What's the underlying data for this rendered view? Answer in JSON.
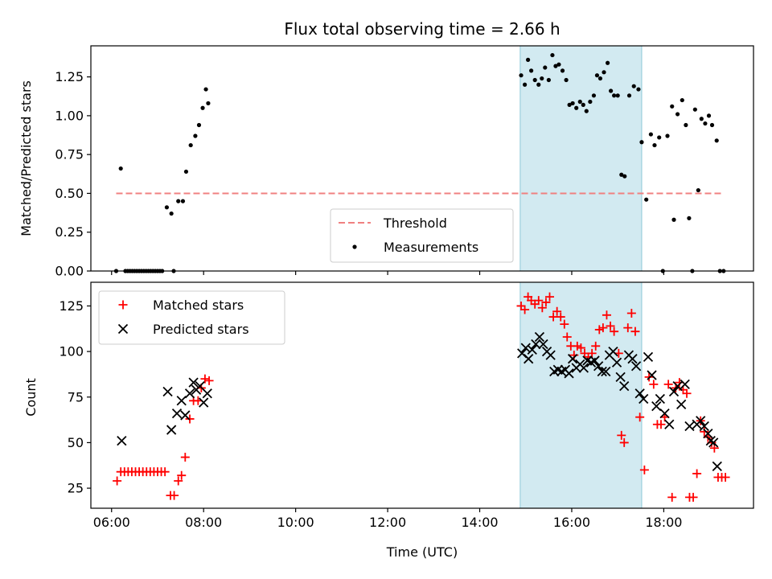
{
  "title": "Flux total observing time = 2.66 h",
  "xlabel": "Time (UTC)",
  "chart_data": [
    {
      "type": "scatter",
      "panel": "top",
      "ylabel": "Matched/Predicted stars",
      "xlim": [
        5.55,
        19.95
      ],
      "ylim": [
        0,
        1.45
      ],
      "xticks": [
        "06:00",
        "08:00",
        "10:00",
        "12:00",
        "14:00",
        "16:00",
        "18:00"
      ],
      "xtick_values": [
        6,
        8,
        10,
        12,
        14,
        16,
        18
      ],
      "yticks": [
        "0.00",
        "0.25",
        "0.50",
        "0.75",
        "1.00",
        "1.25"
      ],
      "ytick_values": [
        0,
        0.25,
        0.5,
        0.75,
        1.0,
        1.25
      ],
      "highlight": {
        "x_start": 14.88,
        "x_end": 17.52,
        "color": "#add8e6"
      },
      "threshold": {
        "name": "Threshold",
        "y": 0.5,
        "x_range": [
          6.1,
          19.3
        ],
        "color": "#f08080"
      },
      "legend": {
        "position": "bottom-center",
        "entries": [
          "Threshold",
          "Measurements"
        ]
      },
      "series": [
        {
          "name": "Measurements",
          "color": "#000000",
          "points": [
            [
              6.1,
              0
            ],
            [
              6.2,
              0.66
            ],
            [
              6.3,
              0
            ],
            [
              6.35,
              0
            ],
            [
              6.4,
              0
            ],
            [
              6.45,
              0
            ],
            [
              6.5,
              0
            ],
            [
              6.55,
              0
            ],
            [
              6.6,
              0
            ],
            [
              6.65,
              0
            ],
            [
              6.7,
              0
            ],
            [
              6.75,
              0
            ],
            [
              6.8,
              0
            ],
            [
              6.85,
              0
            ],
            [
              6.9,
              0
            ],
            [
              6.95,
              0
            ],
            [
              7.0,
              0
            ],
            [
              7.05,
              0
            ],
            [
              7.1,
              0
            ],
            [
              7.2,
              0.41
            ],
            [
              7.3,
              0.37
            ],
            [
              7.35,
              0
            ],
            [
              7.45,
              0.45
            ],
            [
              7.55,
              0.45
            ],
            [
              7.62,
              0.64
            ],
            [
              7.72,
              0.81
            ],
            [
              7.82,
              0.87
            ],
            [
              7.9,
              0.94
            ],
            [
              7.98,
              1.05
            ],
            [
              8.05,
              1.17
            ],
            [
              8.1,
              1.08
            ],
            [
              14.9,
              1.26
            ],
            [
              14.98,
              1.2
            ],
            [
              15.05,
              1.36
            ],
            [
              15.12,
              1.29
            ],
            [
              15.2,
              1.23
            ],
            [
              15.28,
              1.2
            ],
            [
              15.35,
              1.24
            ],
            [
              15.42,
              1.31
            ],
            [
              15.5,
              1.23
            ],
            [
              15.58,
              1.39
            ],
            [
              15.65,
              1.32
            ],
            [
              15.72,
              1.33
            ],
            [
              15.8,
              1.29
            ],
            [
              15.88,
              1.23
            ],
            [
              15.95,
              1.07
            ],
            [
              16.02,
              1.08
            ],
            [
              16.1,
              1.05
            ],
            [
              16.18,
              1.09
            ],
            [
              16.25,
              1.07
            ],
            [
              16.32,
              1.03
            ],
            [
              16.4,
              1.09
            ],
            [
              16.48,
              1.13
            ],
            [
              16.55,
              1.26
            ],
            [
              16.62,
              1.24
            ],
            [
              16.7,
              1.28
            ],
            [
              16.78,
              1.34
            ],
            [
              16.85,
              1.16
            ],
            [
              16.92,
              1.13
            ],
            [
              17.0,
              1.13
            ],
            [
              17.08,
              0.62
            ],
            [
              17.15,
              0.61
            ],
            [
              17.25,
              1.13
            ],
            [
              17.35,
              1.19
            ],
            [
              17.45,
              1.17
            ],
            [
              17.52,
              0.83
            ],
            [
              17.62,
              0.46
            ],
            [
              17.72,
              0.88
            ],
            [
              17.8,
              0.81
            ],
            [
              17.9,
              0.86
            ],
            [
              17.98,
              0
            ],
            [
              18.08,
              0.87
            ],
            [
              18.18,
              1.06
            ],
            [
              18.22,
              0.33
            ],
            [
              18.3,
              1.01
            ],
            [
              18.4,
              1.1
            ],
            [
              18.48,
              0.94
            ],
            [
              18.55,
              0.34
            ],
            [
              18.62,
              0
            ],
            [
              18.68,
              1.04
            ],
            [
              18.75,
              0.52
            ],
            [
              18.82,
              0.98
            ],
            [
              18.9,
              0.95
            ],
            [
              18.98,
              1.0
            ],
            [
              19.05,
              0.94
            ],
            [
              19.15,
              0.84
            ],
            [
              19.22,
              0
            ],
            [
              19.3,
              0
            ]
          ]
        }
      ]
    },
    {
      "type": "scatter",
      "panel": "bottom",
      "ylabel": "Count",
      "xlim": [
        5.55,
        19.95
      ],
      "ylim": [
        14,
        138
      ],
      "xticks": [
        "06:00",
        "08:00",
        "10:00",
        "12:00",
        "14:00",
        "16:00",
        "18:00"
      ],
      "xtick_values": [
        6,
        8,
        10,
        12,
        14,
        16,
        18
      ],
      "yticks": [
        "25",
        "50",
        "75",
        "100",
        "125"
      ],
      "ytick_values": [
        25,
        50,
        75,
        100,
        125
      ],
      "highlight": {
        "x_start": 14.88,
        "x_end": 17.52,
        "color": "#add8e6"
      },
      "legend": {
        "position": "top-left",
        "entries": [
          "Matched stars",
          "Predicted stars"
        ]
      },
      "series": [
        {
          "name": "Matched stars",
          "marker": "+",
          "color": "#ff0000",
          "points": [
            [
              6.12,
              29
            ],
            [
              6.2,
              34
            ],
            [
              6.28,
              34
            ],
            [
              6.36,
              34
            ],
            [
              6.44,
              34
            ],
            [
              6.52,
              34
            ],
            [
              6.6,
              34
            ],
            [
              6.68,
              34
            ],
            [
              6.76,
              34
            ],
            [
              6.84,
              34
            ],
            [
              6.92,
              34
            ],
            [
              7.0,
              34
            ],
            [
              7.08,
              34
            ],
            [
              7.16,
              34
            ],
            [
              7.28,
              21
            ],
            [
              7.36,
              21
            ],
            [
              7.45,
              29
            ],
            [
              7.52,
              32
            ],
            [
              7.6,
              42
            ],
            [
              7.7,
              63
            ],
            [
              7.78,
              73
            ],
            [
              7.88,
              73
            ],
            [
              7.95,
              80
            ],
            [
              8.03,
              85
            ],
            [
              8.12,
              84
            ],
            [
              14.9,
              125
            ],
            [
              14.98,
              123
            ],
            [
              15.05,
              130
            ],
            [
              15.12,
              128
            ],
            [
              15.2,
              126
            ],
            [
              15.28,
              128
            ],
            [
              15.36,
              124
            ],
            [
              15.44,
              127
            ],
            [
              15.52,
              130
            ],
            [
              15.6,
              119
            ],
            [
              15.68,
              122
            ],
            [
              15.76,
              119
            ],
            [
              15.84,
              115
            ],
            [
              15.9,
              108
            ],
            [
              15.98,
              103
            ],
            [
              16.05,
              98
            ],
            [
              16.12,
              103
            ],
            [
              16.2,
              102
            ],
            [
              16.28,
              99
            ],
            [
              16.36,
              97
            ],
            [
              16.44,
              99
            ],
            [
              16.52,
              103
            ],
            [
              16.6,
              112
            ],
            [
              16.68,
              113
            ],
            [
              16.76,
              120
            ],
            [
              16.84,
              114
            ],
            [
              16.92,
              111
            ],
            [
              17.02,
              99
            ],
            [
              17.08,
              54
            ],
            [
              17.14,
              50
            ],
            [
              17.22,
              113
            ],
            [
              17.3,
              121
            ],
            [
              17.38,
              111
            ],
            [
              17.48,
              64
            ],
            [
              17.58,
              35
            ],
            [
              17.68,
              86
            ],
            [
              17.78,
              82
            ],
            [
              17.86,
              60
            ],
            [
              17.94,
              60
            ],
            [
              18.02,
              64
            ],
            [
              18.1,
              82
            ],
            [
              18.18,
              20
            ],
            [
              18.26,
              80
            ],
            [
              18.34,
              83
            ],
            [
              18.42,
              79
            ],
            [
              18.5,
              77
            ],
            [
              18.56,
              20
            ],
            [
              18.64,
              20
            ],
            [
              18.72,
              33
            ],
            [
              18.8,
              62
            ],
            [
              18.88,
              56
            ],
            [
              18.96,
              53
            ],
            [
              19.04,
              50
            ],
            [
              19.1,
              47
            ],
            [
              19.18,
              31
            ],
            [
              19.26,
              31
            ],
            [
              19.34,
              31
            ]
          ]
        },
        {
          "name": "Predicted stars",
          "marker": "x",
          "color": "#000000",
          "points": [
            [
              6.22,
              51
            ],
            [
              7.22,
              78
            ],
            [
              7.3,
              57
            ],
            [
              7.42,
              66
            ],
            [
              7.52,
              73
            ],
            [
              7.6,
              65
            ],
            [
              7.7,
              77
            ],
            [
              7.78,
              83
            ],
            [
              7.84,
              79
            ],
            [
              7.92,
              81
            ],
            [
              8.0,
              72
            ],
            [
              8.08,
              77
            ],
            [
              14.92,
              99
            ],
            [
              15.0,
              102
            ],
            [
              15.06,
              96
            ],
            [
              15.14,
              101
            ],
            [
              15.22,
              104
            ],
            [
              15.3,
              108
            ],
            [
              15.38,
              104
            ],
            [
              15.46,
              100
            ],
            [
              15.54,
              98
            ],
            [
              15.62,
              89
            ],
            [
              15.7,
              90
            ],
            [
              15.78,
              89
            ],
            [
              15.86,
              90
            ],
            [
              15.94,
              88
            ],
            [
              16.02,
              96
            ],
            [
              16.1,
              91
            ],
            [
              16.18,
              93
            ],
            [
              16.26,
              91
            ],
            [
              16.34,
              95
            ],
            [
              16.42,
              94
            ],
            [
              16.5,
              95
            ],
            [
              16.58,
              92
            ],
            [
              16.66,
              89
            ],
            [
              16.74,
              89
            ],
            [
              16.82,
              98
            ],
            [
              16.9,
              100
            ],
            [
              16.98,
              94
            ],
            [
              17.06,
              86
            ],
            [
              17.14,
              81
            ],
            [
              17.24,
              98
            ],
            [
              17.32,
              96
            ],
            [
              17.4,
              92
            ],
            [
              17.48,
              77
            ],
            [
              17.56,
              74
            ],
            [
              17.66,
              97
            ],
            [
              17.74,
              87
            ],
            [
              17.84,
              70
            ],
            [
              17.92,
              74
            ],
            [
              18.02,
              66
            ],
            [
              18.12,
              60
            ],
            [
              18.22,
              78
            ],
            [
              18.3,
              81
            ],
            [
              18.38,
              71
            ],
            [
              18.46,
              82
            ],
            [
              18.56,
              59
            ],
            [
              18.72,
              60
            ],
            [
              18.8,
              62
            ],
            [
              18.88,
              59
            ],
            [
              18.96,
              55
            ],
            [
              19.02,
              51
            ],
            [
              19.08,
              50
            ],
            [
              19.16,
              37
            ]
          ]
        }
      ]
    }
  ]
}
